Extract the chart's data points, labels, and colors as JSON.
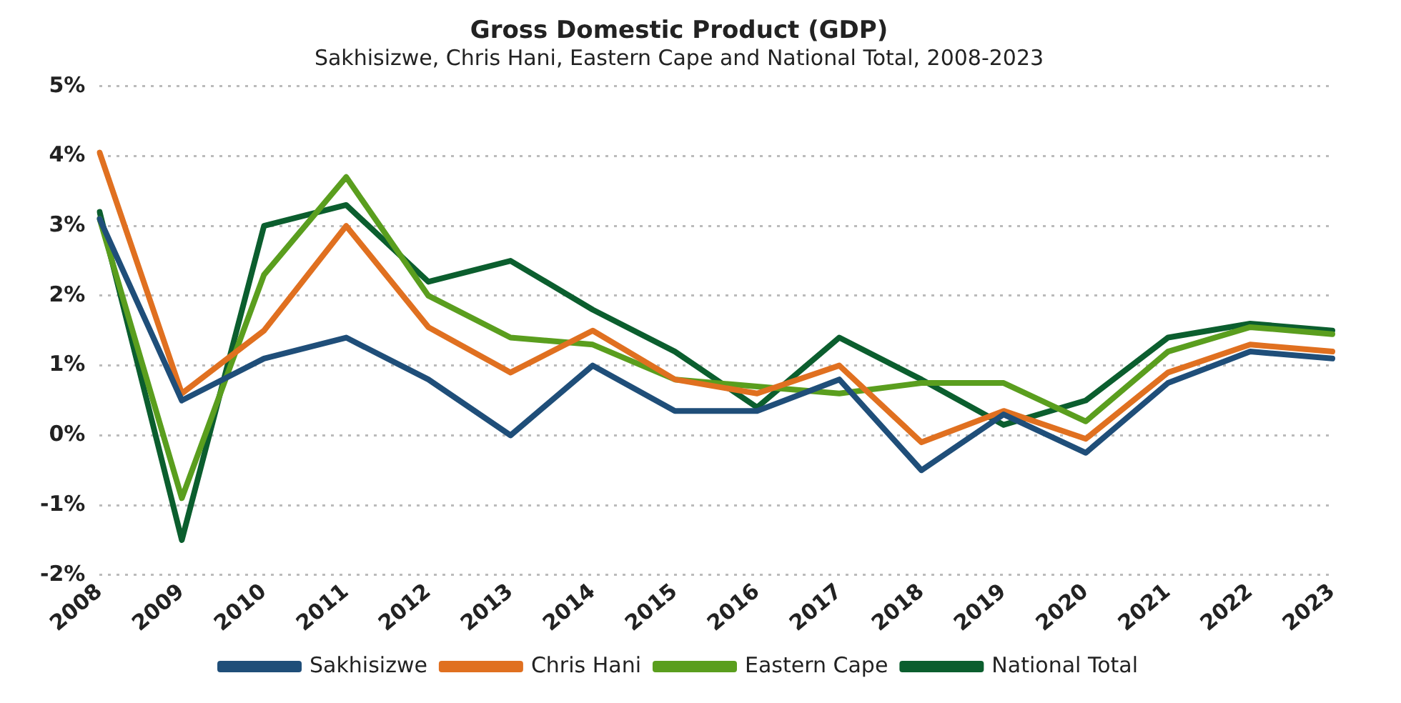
{
  "chart_data": {
    "type": "line",
    "title": "Gross Domestic Product (GDP)",
    "subtitle": "Sakhisizwe, Chris Hani, Eastern Cape and National Total, 2008-2023",
    "categories": [
      "2008",
      "2009",
      "2010",
      "2011",
      "2012",
      "2013",
      "2014",
      "2015",
      "2016",
      "2017",
      "2018",
      "2019",
      "2020",
      "2021",
      "2022",
      "2023"
    ],
    "series": [
      {
        "name": "Sakhisizwe",
        "color": "#1f4e79",
        "values": [
          3.1,
          0.5,
          1.1,
          1.4,
          0.8,
          0.0,
          1.0,
          0.35,
          0.35,
          0.8,
          -0.5,
          0.3,
          -0.25,
          0.75,
          1.2,
          1.1
        ]
      },
      {
        "name": "Chris Hani",
        "color": "#e07020",
        "values": [
          4.05,
          0.6,
          1.5,
          3.0,
          1.55,
          0.9,
          1.5,
          0.8,
          0.6,
          1.0,
          -0.1,
          0.35,
          -0.05,
          0.9,
          1.3,
          1.2
        ]
      },
      {
        "name": "Eastern Cape",
        "color": "#5a9e1e",
        "values": [
          3.1,
          -0.9,
          2.3,
          3.7,
          2.0,
          1.4,
          1.3,
          0.8,
          0.7,
          0.6,
          0.75,
          0.75,
          0.2,
          1.2,
          1.55,
          1.45
        ]
      },
      {
        "name": "National Total",
        "color": "#0b5e2e",
        "values": [
          3.2,
          -1.5,
          3.0,
          3.3,
          2.2,
          2.5,
          1.8,
          1.2,
          0.4,
          1.4,
          0.8,
          0.15,
          0.5,
          1.4,
          1.6,
          1.5
        ]
      }
    ],
    "ylim": [
      -2,
      5
    ],
    "yticks": [
      {
        "value": -2,
        "label": "-2%"
      },
      {
        "value": -1,
        "label": "-1%"
      },
      {
        "value": 0,
        "label": "0%"
      },
      {
        "value": 1,
        "label": "1%"
      },
      {
        "value": 2,
        "label": "2%"
      },
      {
        "value": 3,
        "label": "3%"
      },
      {
        "value": 4,
        "label": "4%"
      },
      {
        "value": 5,
        "label": "5%"
      }
    ],
    "grid": "y",
    "legend": "bottom",
    "marker": "none",
    "line_style": "solid"
  }
}
